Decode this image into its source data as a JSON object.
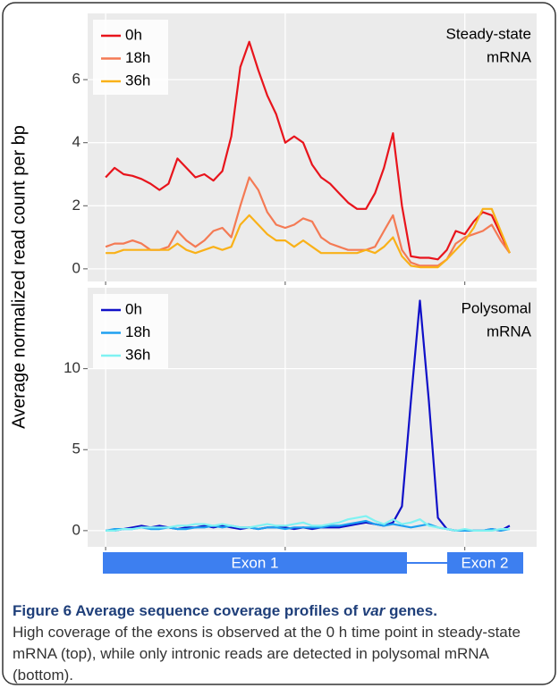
{
  "ylabel": "Average normalized read count per bp",
  "chart_data": [
    {
      "type": "line",
      "annotation": [
        "Steady-state",
        "mRNA"
      ],
      "x": [
        0,
        2,
        4,
        6,
        8,
        10,
        12,
        14,
        16,
        18,
        20,
        22,
        24,
        26,
        28,
        30,
        32,
        34,
        36,
        38,
        40,
        42,
        44,
        46,
        48,
        50,
        52,
        54,
        56,
        58,
        60,
        62,
        64,
        66,
        68,
        70,
        72,
        74,
        76,
        78,
        80,
        82,
        84,
        86,
        88,
        90
      ],
      "xlim": [
        -4,
        96
      ],
      "xticks": [
        0,
        40,
        80
      ],
      "ylim": [
        -0.4,
        8.1
      ],
      "yticks": [
        0,
        2,
        4,
        6
      ],
      "grid": true,
      "legend": "top-left",
      "series": [
        {
          "name": "0h",
          "color": "#e8141c",
          "values": [
            2.9,
            3.2,
            3.0,
            2.95,
            2.85,
            2.7,
            2.5,
            2.7,
            3.5,
            3.2,
            2.9,
            3.0,
            2.8,
            3.1,
            4.2,
            6.4,
            7.2,
            6.3,
            5.5,
            4.9,
            4.0,
            4.2,
            4.0,
            3.3,
            2.9,
            2.7,
            2.4,
            2.1,
            1.9,
            1.9,
            2.4,
            3.2,
            4.3,
            2.0,
            0.4,
            0.35,
            0.35,
            0.3,
            0.6,
            1.2,
            1.1,
            1.5,
            1.8,
            1.7,
            1.1,
            0.5
          ]
        },
        {
          "name": "18h",
          "color": "#f47a54",
          "values": [
            0.7,
            0.8,
            0.8,
            0.9,
            0.8,
            0.6,
            0.6,
            0.7,
            1.2,
            0.9,
            0.7,
            0.9,
            1.2,
            1.3,
            1.0,
            2.0,
            2.9,
            2.5,
            1.8,
            1.4,
            1.3,
            1.4,
            1.6,
            1.5,
            1.0,
            0.8,
            0.7,
            0.6,
            0.6,
            0.6,
            0.7,
            1.2,
            1.7,
            0.6,
            0.2,
            0.1,
            0.1,
            0.1,
            0.3,
            0.8,
            1.0,
            1.1,
            1.2,
            1.4,
            0.9,
            0.5
          ]
        },
        {
          "name": "36h",
          "color": "#f9b118",
          "values": [
            0.5,
            0.5,
            0.6,
            0.6,
            0.6,
            0.6,
            0.6,
            0.6,
            0.8,
            0.6,
            0.5,
            0.6,
            0.7,
            0.6,
            0.7,
            1.4,
            1.7,
            1.4,
            1.1,
            0.9,
            0.9,
            0.7,
            0.9,
            0.7,
            0.5,
            0.5,
            0.5,
            0.5,
            0.5,
            0.6,
            0.5,
            0.7,
            1.0,
            0.4,
            0.1,
            0.05,
            0.05,
            0.05,
            0.3,
            0.6,
            0.9,
            1.3,
            1.9,
            1.9,
            1.2,
            0.5
          ]
        }
      ]
    },
    {
      "type": "line",
      "annotation": [
        "Polysomal",
        "mRNA"
      ],
      "x": [
        0,
        2,
        4,
        6,
        8,
        10,
        12,
        14,
        16,
        18,
        20,
        22,
        24,
        26,
        28,
        30,
        32,
        34,
        36,
        38,
        40,
        42,
        44,
        46,
        48,
        50,
        52,
        54,
        56,
        58,
        60,
        62,
        64,
        66,
        68,
        70,
        72,
        74,
        76,
        78,
        80,
        82,
        84,
        86,
        88,
        90
      ],
      "xlim": [
        -4,
        96
      ],
      "xticks": [
        0,
        40,
        80
      ],
      "ylim": [
        -1,
        15
      ],
      "yticks": [
        0,
        5,
        10
      ],
      "grid": true,
      "legend": "top-left",
      "series": [
        {
          "name": "0h",
          "color": "#1010c8",
          "values": [
            0,
            0,
            0.1,
            0.2,
            0.3,
            0.2,
            0.3,
            0.2,
            0.1,
            0.2,
            0.2,
            0.3,
            0.2,
            0.3,
            0.2,
            0.1,
            0.2,
            0.1,
            0.2,
            0.2,
            0.2,
            0.1,
            0.2,
            0.1,
            0.2,
            0.2,
            0.2,
            0.3,
            0.4,
            0.5,
            0.4,
            0.3,
            0.5,
            1.5,
            8,
            14.2,
            8,
            0.8,
            0.1,
            0,
            0,
            0,
            0,
            0.1,
            0,
            0.3
          ]
        },
        {
          "name": "18h",
          "color": "#1ea0f0",
          "values": [
            0,
            0.1,
            0.1,
            0.1,
            0.2,
            0.1,
            0.1,
            0.2,
            0.1,
            0.1,
            0.2,
            0.2,
            0.3,
            0.2,
            0.3,
            0.2,
            0.2,
            0.1,
            0.2,
            0.2,
            0.1,
            0.2,
            0.2,
            0.2,
            0.2,
            0.3,
            0.3,
            0.4,
            0.5,
            0.6,
            0.4,
            0.3,
            0.4,
            0.3,
            0.2,
            0.3,
            0.4,
            0.2,
            0.1,
            0,
            0,
            0,
            0,
            0.1,
            0,
            0.1
          ]
        },
        {
          "name": "36h",
          "color": "#7ff2f2",
          "values": [
            0,
            0,
            0.1,
            0.1,
            0.2,
            0.2,
            0.2,
            0.2,
            0.3,
            0.3,
            0.4,
            0.4,
            0.3,
            0.4,
            0.3,
            0.2,
            0.2,
            0.3,
            0.4,
            0.3,
            0.3,
            0.4,
            0.5,
            0.3,
            0.3,
            0.4,
            0.5,
            0.7,
            0.8,
            0.9,
            0.6,
            0.4,
            0.7,
            0.4,
            0.5,
            0.7,
            0.3,
            0.2,
            0.1,
            0,
            0.1,
            0,
            0,
            0,
            0.1,
            0.1
          ]
        }
      ]
    }
  ],
  "gene_diagram": {
    "exons": [
      "Exon 1",
      "Exon 2"
    ]
  },
  "caption": {
    "title_start": "Figure 6 Average sequence coverage profiles of ",
    "title_italic": "var",
    "title_end": " genes.",
    "text": "High coverage of the exons is observed at the 0 h time point in steady-state mRNA (top), while only intronic reads are detected in polysomal mRNA (bottom)."
  }
}
